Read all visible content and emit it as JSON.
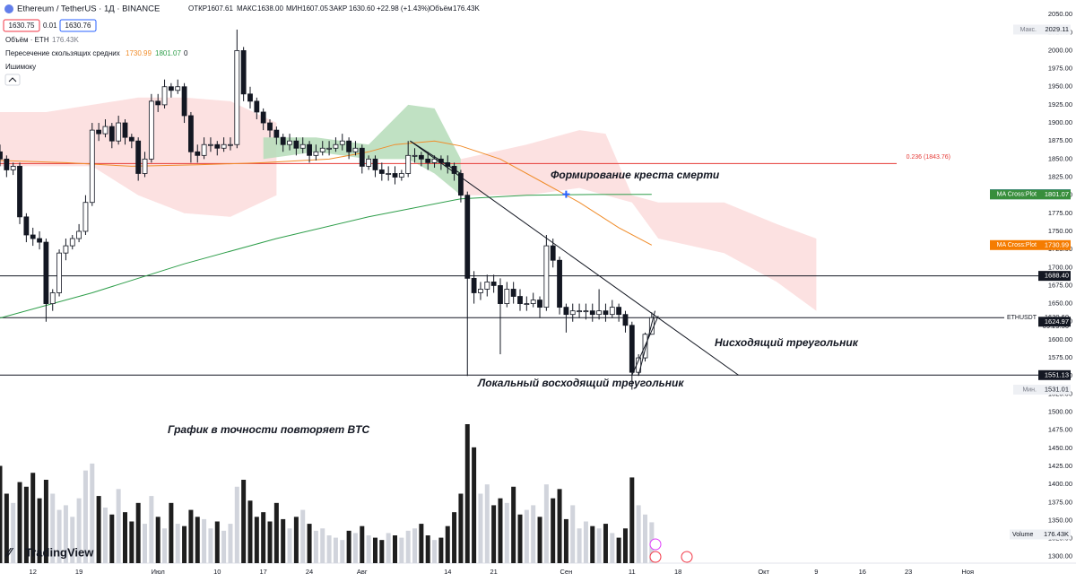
{
  "header": {
    "symbol": "Ethereum / TetherUS · 1Д · BINANCE",
    "ohlc": [
      {
        "label": "ОТКР",
        "value": "1607.61"
      },
      {
        "label": "МАКС",
        "value": "1638.00"
      },
      {
        "label": "МИН",
        "value": "1607.05"
      },
      {
        "label": "ЗАКР",
        "value": "1630.60"
      }
    ],
    "change": "+22.98 (+1.43%)",
    "volume_label": "Объём",
    "volume_value": "176.43K",
    "bid": "1630.75",
    "spread": "0.01",
    "ask": "1630.76",
    "indicators": [
      {
        "name": "Объём · ETH",
        "values": [
          "176.43K"
        ]
      },
      {
        "name": "Пересечение скользящих средних",
        "values": [
          "1730.99",
          "1801.07",
          "0"
        ]
      },
      {
        "name": "Ишимоку"
      }
    ]
  },
  "watermark": "TradingView",
  "chart_data": {
    "type": "candlestick",
    "xlim": [
      0,
      158
    ],
    "ylim": [
      1291,
      2070
    ],
    "grid": false,
    "xticks": [
      {
        "value": 5,
        "label": "12"
      },
      {
        "value": 12,
        "label": "19"
      },
      {
        "value": 24,
        "label": "Июл"
      },
      {
        "value": 33,
        "label": "10"
      },
      {
        "value": 40,
        "label": "17"
      },
      {
        "value": 47,
        "label": "24"
      },
      {
        "value": 55,
        "label": "Авг"
      },
      {
        "value": 68,
        "label": "14"
      },
      {
        "value": 75,
        "label": "21"
      },
      {
        "value": 86,
        "label": "Сен"
      },
      {
        "value": 96,
        "label": "11"
      },
      {
        "value": 103,
        "label": "18"
      },
      {
        "value": 116,
        "label": "Окт"
      },
      {
        "value": 124,
        "label": "9"
      },
      {
        "value": 131,
        "label": "16"
      },
      {
        "value": 138,
        "label": "23"
      },
      {
        "value": 147,
        "label": "Ноя"
      }
    ],
    "yticks": [
      {
        "value": 1300,
        "label": "1300.00"
      },
      {
        "value": 1325,
        "label": "1325.00"
      },
      {
        "value": 1350,
        "label": "1350.00"
      },
      {
        "value": 1375,
        "label": "1375.00"
      },
      {
        "value": 1400,
        "label": "1400.00"
      },
      {
        "value": 1425,
        "label": "1425.00"
      },
      {
        "value": 1450,
        "label": "1450.00"
      },
      {
        "value": 1475,
        "label": "1475.00"
      },
      {
        "value": 1500,
        "label": "1500.00"
      },
      {
        "value": 1525,
        "label": "1525.00"
      },
      {
        "value": 1550,
        "label": "1550.00"
      },
      {
        "value": 1575,
        "label": "1575.00"
      },
      {
        "value": 1600,
        "label": "1600.00"
      },
      {
        "value": 1625,
        "label": "1625.00"
      },
      {
        "value": 1650,
        "label": "1650.00"
      },
      {
        "value": 1675,
        "label": "1675.00"
      },
      {
        "value": 1700,
        "label": "1700.00"
      },
      {
        "value": 1725,
        "label": "1725.00"
      },
      {
        "value": 1750,
        "label": "1750.00"
      },
      {
        "value": 1775,
        "label": "1775.00"
      },
      {
        "value": 1800,
        "label": "1800.00"
      },
      {
        "value": 1825,
        "label": "1825.00"
      },
      {
        "value": 1850,
        "label": "1850.00"
      },
      {
        "value": 1875,
        "label": "1875.00"
      },
      {
        "value": 1900,
        "label": "1900.00"
      },
      {
        "value": 1925,
        "label": "1925.00"
      },
      {
        "value": 1950,
        "label": "1950.00"
      },
      {
        "value": 1975,
        "label": "1975.00"
      },
      {
        "value": 2000,
        "label": "2000.00"
      },
      {
        "value": 2025,
        "label": "2025.00"
      },
      {
        "value": 2050,
        "label": "2050.00"
      }
    ],
    "up_color": "#ffffff",
    "down_color": "#131722",
    "volume_up_color": "#d1d4dc",
    "volume_down_color": "#1e1e1e",
    "candles": {
      "open": [
        1860,
        1850,
        1835,
        1840,
        1770,
        1745,
        1740,
        1735,
        1650,
        1665,
        1720,
        1730,
        1740,
        1750,
        1790,
        1890,
        1885,
        1895,
        1875,
        1900,
        1880,
        1875,
        1830,
        1850,
        1930,
        1925,
        1950,
        1945,
        1950,
        1910,
        1860,
        1855,
        1870,
        1870,
        1865,
        1870,
        1870,
        2000,
        1940,
        1930,
        1915,
        1900,
        1890,
        1880,
        1870,
        1875,
        1865,
        1870,
        1855,
        1860,
        1865,
        1865,
        1870,
        1875,
        1860,
        1865,
        1840,
        1850,
        1835,
        1830,
        1830,
        1825,
        1830,
        1855,
        1855,
        1850,
        1845,
        1850,
        1845,
        1840,
        1830,
        1800,
        1685,
        1665,
        1670,
        1680,
        1675,
        1650,
        1670,
        1660,
        1650,
        1650,
        1655,
        1645,
        1730,
        1710,
        1645,
        1635,
        1640,
        1640,
        1640,
        1635,
        1640,
        1635,
        1645,
        1635,
        1620,
        1555,
        1575,
        1607.61
      ],
      "high": [
        1870,
        1855,
        1845,
        1845,
        1775,
        1755,
        1750,
        1740,
        1670,
        1725,
        1740,
        1745,
        1760,
        1800,
        1900,
        1900,
        1905,
        1900,
        1910,
        1905,
        1885,
        1880,
        1860,
        1940,
        1940,
        1960,
        1955,
        1960,
        1955,
        1915,
        1870,
        1880,
        1880,
        1875,
        1880,
        1880,
        2029.11,
        2005,
        1950,
        1935,
        1920,
        1905,
        1895,
        1885,
        1885,
        1880,
        1880,
        1875,
        1870,
        1875,
        1875,
        1880,
        1885,
        1880,
        1875,
        1870,
        1855,
        1855,
        1845,
        1840,
        1840,
        1835,
        1875,
        1865,
        1860,
        1860,
        1855,
        1855,
        1855,
        1845,
        1835,
        1805,
        1695,
        1680,
        1690,
        1690,
        1685,
        1680,
        1680,
        1670,
        1660,
        1665,
        1660,
        1745,
        1740,
        1715,
        1650,
        1650,
        1650,
        1650,
        1650,
        1670,
        1650,
        1655,
        1650,
        1640,
        1625,
        1580,
        1610,
        1638
      ],
      "low": [
        1840,
        1825,
        1828,
        1760,
        1735,
        1730,
        1725,
        1625,
        1640,
        1660,
        1710,
        1725,
        1735,
        1745,
        1785,
        1875,
        1880,
        1865,
        1870,
        1870,
        1865,
        1820,
        1825,
        1845,
        1915,
        1920,
        1935,
        1940,
        1900,
        1845,
        1845,
        1850,
        1860,
        1855,
        1860,
        1862,
        1865,
        1930,
        1920,
        1905,
        1890,
        1880,
        1870,
        1860,
        1862,
        1855,
        1858,
        1845,
        1848,
        1855,
        1855,
        1860,
        1862,
        1850,
        1855,
        1830,
        1835,
        1825,
        1820,
        1820,
        1815,
        1820,
        1825,
        1845,
        1840,
        1835,
        1838,
        1835,
        1830,
        1820,
        1790,
        1550,
        1650,
        1655,
        1660,
        1665,
        1580,
        1645,
        1650,
        1640,
        1640,
        1645,
        1630,
        1640,
        1700,
        1635,
        1610,
        1625,
        1630,
        1628,
        1625,
        1628,
        1625,
        1630,
        1625,
        1610,
        1531.01,
        1550,
        1570,
        1607.05
      ],
      "close": [
        1850,
        1835,
        1840,
        1770,
        1745,
        1740,
        1735,
        1650,
        1665,
        1720,
        1730,
        1740,
        1750,
        1790,
        1890,
        1885,
        1895,
        1875,
        1900,
        1880,
        1875,
        1830,
        1850,
        1930,
        1925,
        1950,
        1945,
        1950,
        1910,
        1860,
        1855,
        1870,
        1870,
        1865,
        1870,
        1870,
        2000,
        1940,
        1930,
        1915,
        1900,
        1890,
        1880,
        1870,
        1875,
        1865,
        1870,
        1855,
        1860,
        1865,
        1865,
        1870,
        1875,
        1860,
        1865,
        1840,
        1850,
        1835,
        1830,
        1830,
        1825,
        1830,
        1855,
        1855,
        1850,
        1845,
        1850,
        1845,
        1840,
        1830,
        1800,
        1685,
        1665,
        1670,
        1680,
        1675,
        1650,
        1670,
        1660,
        1650,
        1650,
        1655,
        1645,
        1730,
        1710,
        1645,
        1635,
        1640,
        1640,
        1640,
        1635,
        1640,
        1635,
        1645,
        1635,
        1620,
        1555,
        1575,
        1607.61,
        1630.6
      ]
    },
    "volume": [
      420000,
      300000,
      260000,
      350000,
      330000,
      390000,
      280000,
      360000,
      300000,
      230000,
      250000,
      200000,
      280000,
      400000,
      430000,
      290000,
      240000,
      210000,
      320000,
      220000,
      180000,
      260000,
      170000,
      290000,
      200000,
      150000,
      260000,
      170000,
      160000,
      230000,
      200000,
      190000,
      150000,
      180000,
      140000,
      170000,
      330000,
      360000,
      270000,
      200000,
      220000,
      180000,
      260000,
      190000,
      150000,
      200000,
      230000,
      170000,
      140000,
      150000,
      120000,
      110000,
      100000,
      140000,
      130000,
      160000,
      120000,
      110000,
      100000,
      130000,
      120000,
      110000,
      140000,
      150000,
      170000,
      120000,
      100000,
      110000,
      160000,
      220000,
      300000,
      600000,
      500000,
      300000,
      340000,
      250000,
      280000,
      260000,
      330000,
      210000,
      230000,
      250000,
      200000,
      340000,
      280000,
      320000,
      190000,
      250000,
      150000,
      180000,
      160000,
      150000,
      170000,
      130000,
      110000,
      150000,
      370000,
      250000,
      210000,
      176430
    ],
    "ma": [
      {
        "name": "MA Cross:Plot",
        "color": "#2e9e4a",
        "x": [
          0,
          14,
          28,
          42,
          56,
          70,
          80,
          90,
          99
        ],
        "values": [
          1630,
          1665,
          1705,
          1740,
          1770,
          1795,
          1800,
          1801,
          1801.07
        ]
      },
      {
        "name": "MA Cross:Plot",
        "color": "#f08c2a",
        "x": [
          0,
          10,
          20,
          30,
          40,
          50,
          56,
          60,
          66,
          70,
          76,
          82,
          88,
          94,
          99
        ],
        "values": [
          1848,
          1845,
          1840,
          1842,
          1845,
          1850,
          1860,
          1870,
          1875,
          1868,
          1850,
          1820,
          1790,
          1755,
          1730.99
        ]
      }
    ],
    "cloud": [
      {
        "color": "#fcdcdc",
        "x": [
          0,
          7,
          14,
          21,
          28,
          35,
          42
        ],
        "upper": [
          1915,
          1915,
          1925,
          1935,
          1935,
          1930,
          1900
        ],
        "lower": [
          1840,
          1840,
          1840,
          1800,
          1775,
          1770,
          1800
        ]
      },
      {
        "color": "#b5dcb9",
        "x": [
          40,
          48,
          56,
          62,
          66,
          70
        ],
        "upper": [
          1880,
          1880,
          1870,
          1925,
          1920,
          1850
        ],
        "lower": [
          1850,
          1860,
          1850,
          1850,
          1830,
          1800
        ]
      },
      {
        "color": "#fcdcdc",
        "x": [
          70,
          80,
          88,
          92,
          96,
          100,
          110,
          118,
          124
        ],
        "upper": [
          1850,
          1870,
          1890,
          1885,
          1800,
          1790,
          1790,
          1760,
          1740
        ],
        "lower": [
          1800,
          1800,
          1810,
          1800,
          1790,
          1740,
          1720,
          1680,
          1640
        ]
      }
    ],
    "levels": [
      {
        "value": 1843.76,
        "color": "#e53935",
        "label": "0.236 (1843.76)"
      },
      {
        "value": 1688.4,
        "color": "#131722"
      },
      {
        "value": 1630.6,
        "color": "#131722"
      },
      {
        "value": 1551.13,
        "color": "#131722"
      }
    ],
    "trendline_color": "#131722",
    "trendlines": [
      {
        "x": [
          62.3,
          112.2
        ],
        "y": [
          1875,
          1551
        ]
      },
      {
        "x": [
          62.3,
          70.3
        ],
        "y": [
          1875,
          1828
        ]
      },
      {
        "x": [
          96,
          100
        ],
        "y": [
          1551,
          1633
        ]
      },
      {
        "x": [
          97,
          99.5
        ],
        "y": [
          1551,
          1640
        ]
      }
    ],
    "cross": {
      "x": 86,
      "y": 1801.29,
      "color": "#2962ff"
    },
    "price_badges": [
      {
        "name": "Макс.",
        "value": 2029.11,
        "label": "2029.11",
        "color": "#eef0f4"
      },
      {
        "name": "MA Cross:Plot",
        "value": 1801.29,
        "label": "1801.29",
        "color": "#2962ff"
      },
      {
        "name": "MA Cross:Plot",
        "value": 1801.07,
        "label": "1801.07",
        "color": "#388e3c"
      },
      {
        "name": "MA Cross:Plot",
        "value": 1730.99,
        "label": "1730.99",
        "color": "#f57c00"
      },
      {
        "value": 1688.4,
        "label": "1688.40",
        "color": "#131722"
      },
      {
        "name": "ETHUSDT",
        "value": 1630.6,
        "label": "1630.60",
        "timer": "09:29:50",
        "color": "#ffffff"
      },
      {
        "value": 1624.97,
        "label": "1624.97",
        "color": "#131722"
      },
      {
        "value": 1551.13,
        "label": "1551.13",
        "color": "#131722"
      },
      {
        "name": "Мин.",
        "value": 1531.01,
        "label": "1531.01",
        "color": "#eef0f4"
      }
    ],
    "volume_badge": {
      "name": "Volume",
      "label": "176.43K"
    },
    "annotations": [
      "Формирование креста смерти",
      "Нисходящий треугольник",
      "Локальный восходящий треугольник",
      "График в точности повторяет BTC"
    ]
  }
}
